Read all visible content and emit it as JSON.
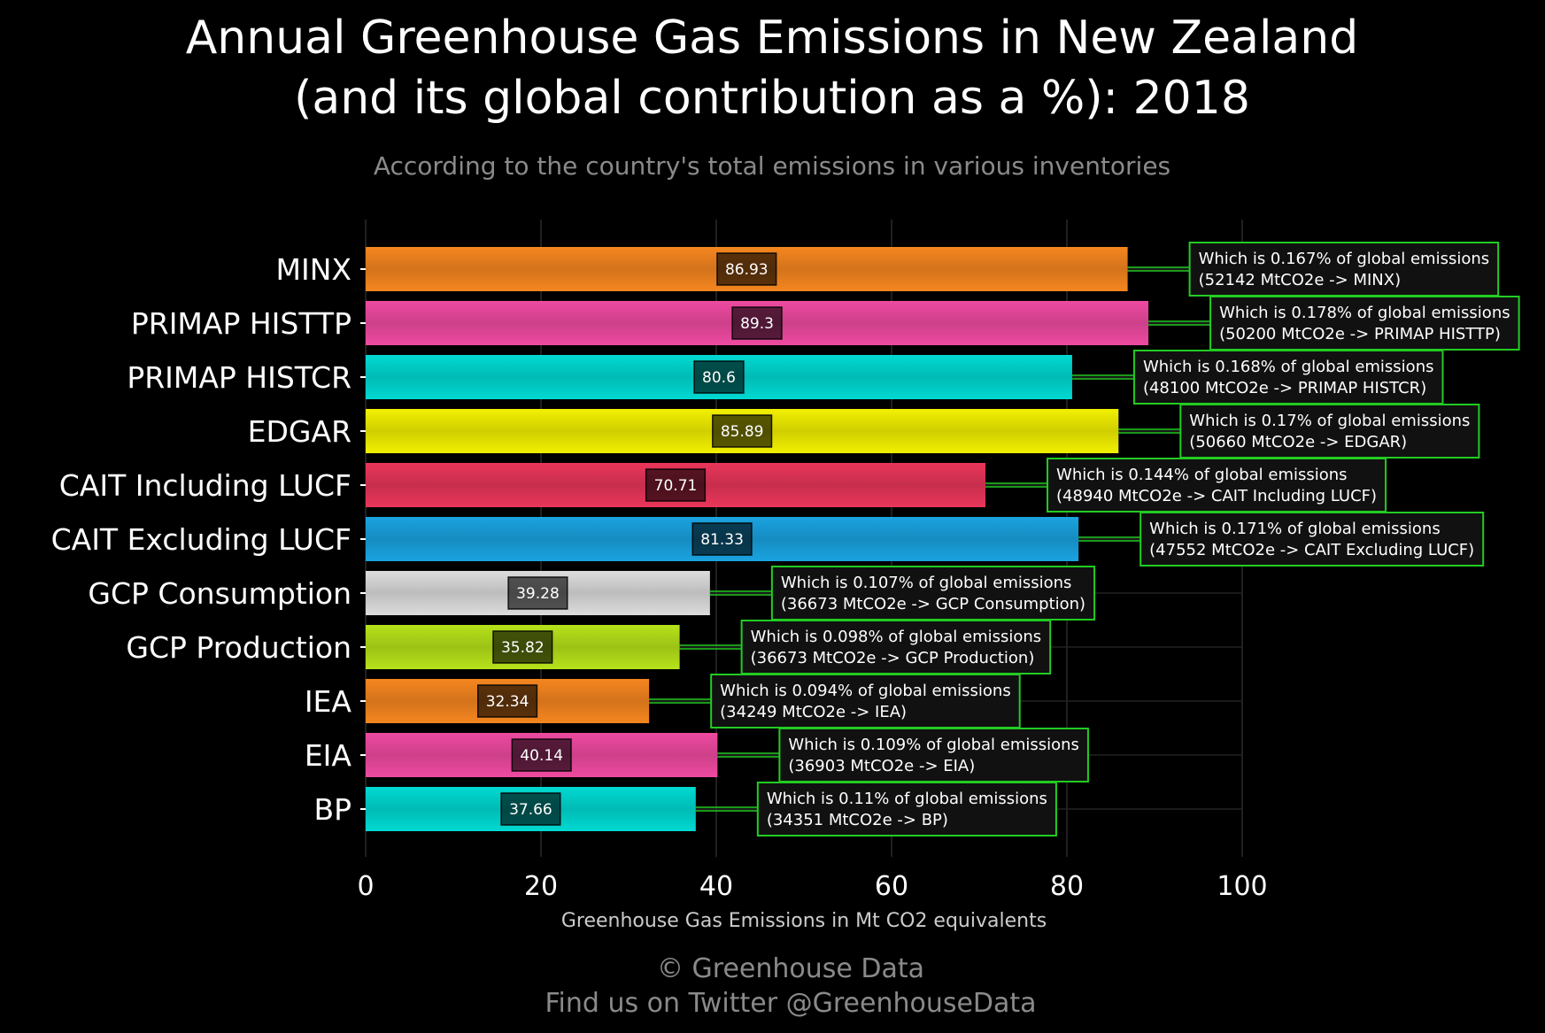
{
  "header": {
    "title_line1": "Annual Greenhouse Gas Emissions in New Zealand",
    "title_line2": "(and its global contribution as a %): 2018",
    "subtitle": "According to the country's total emissions in various inventories"
  },
  "footer": {
    "copyright": "© Greenhouse Data",
    "twitter": "Find us on Twitter @GreenhouseData"
  },
  "chart_data": {
    "type": "bar",
    "orientation": "horizontal",
    "title": "Annual Greenhouse Gas Emissions in New Zealand (and its global contribution as a %): 2018",
    "subtitle": "According to the country's total emissions in various inventories",
    "xlabel": "Greenhouse Gas Emissions in Mt CO2 equivalents",
    "ylabel": "",
    "xlim": [
      0,
      100
    ],
    "xticks": [
      0,
      20,
      40,
      60,
      80,
      100
    ],
    "grid": true,
    "categories": [
      "MINX",
      "PRIMAP HISTTP",
      "PRIMAP HISTCR",
      "EDGAR",
      "CAIT Including LUCF",
      "CAIT Excluding LUCF",
      "GCP Consumption",
      "GCP Production",
      "IEA",
      "EIA",
      "BP"
    ],
    "values": [
      86.93,
      89.3,
      80.6,
      85.89,
      70.71,
      81.33,
      39.28,
      35.82,
      32.34,
      40.14,
      37.66
    ],
    "value_labels": [
      "86.93",
      "89.3",
      "80.6",
      "85.89",
      "70.71",
      "81.33",
      "39.28",
      "35.82",
      "32.34",
      "40.14",
      "37.66"
    ],
    "colors": [
      "#f5861f",
      "#ee4aa0",
      "#00d9d2",
      "#f2f000",
      "#e9365a",
      "#1aa3e0",
      "#dcdcdc",
      "#b6e21a",
      "#f5861f",
      "#ee4aa0",
      "#00d9d2"
    ],
    "annotations": [
      {
        "line1": "Which is 0.167% of global emissions",
        "line2": "(52142 MtCO2e -> MINX)"
      },
      {
        "line1": "Which is 0.178% of global emissions",
        "line2": "(50200 MtCO2e -> PRIMAP HISTTP)"
      },
      {
        "line1": "Which is 0.168% of global emissions",
        "line2": "(48100 MtCO2e -> PRIMAP HISTCR)"
      },
      {
        "line1": "Which is 0.17% of global emissions",
        "line2": "(50660 MtCO2e -> EDGAR)"
      },
      {
        "line1": "Which is 0.144% of global emissions",
        "line2": "(48940 MtCO2e -> CAIT Including LUCF)"
      },
      {
        "line1": "Which is 0.171% of global emissions",
        "line2": "(47552 MtCO2e -> CAIT Excluding LUCF)"
      },
      {
        "line1": "Which is 0.107% of global emissions",
        "line2": "(36673 MtCO2e -> GCP Consumption)"
      },
      {
        "line1": "Which is 0.098% of global emissions",
        "line2": "(36673 MtCO2e -> GCP Production)"
      },
      {
        "line1": "Which is 0.094% of global emissions",
        "line2": "(34249 MtCO2e -> IEA)"
      },
      {
        "line1": "Which is 0.109% of global emissions",
        "line2": "(36903 MtCO2e -> EIA)"
      },
      {
        "line1": "Which is 0.11% of global emissions",
        "line2": "(34351 MtCO2e -> BP)"
      }
    ],
    "annotation_border_color": "#22cc22"
  }
}
